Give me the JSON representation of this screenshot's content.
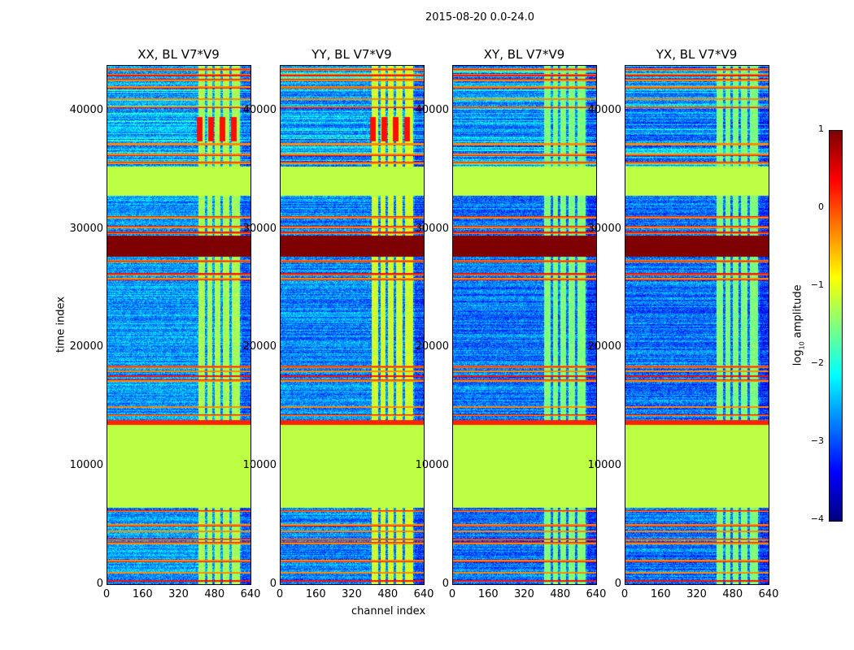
{
  "chart_data": {
    "type": "heatmap",
    "title": "2015-08-20 0.0-24.0",
    "xlabel": "channel index",
    "ylabel": "time index",
    "xlim": [
      0,
      640
    ],
    "ylim": [
      0,
      43840
    ],
    "xticks": [
      "0",
      "160",
      "320",
      "480",
      "640"
    ],
    "xtick_values": [
      0,
      160,
      320,
      480,
      640
    ],
    "yticks": [
      "0",
      "10000",
      "20000",
      "30000",
      "40000"
    ],
    "ytick_values": [
      0,
      10000,
      20000,
      30000,
      40000
    ],
    "panels": [
      {
        "title": "XX, BL V7*V9",
        "noise_level": -2.6,
        "rfi_level": -1.3
      },
      {
        "title": "YY, BL V7*V9",
        "noise_level": -2.7,
        "rfi_level": -1.1
      },
      {
        "title": "XY, BL V7*V9",
        "noise_level": -2.8,
        "rfi_level": -1.5
      },
      {
        "title": "YX, BL V7*V9",
        "noise_level": -2.8,
        "rfi_level": -1.5
      }
    ],
    "flagged_bands": [
      {
        "t0": 6500,
        "t1": 13450,
        "value": -1.2
      },
      {
        "t0": 13450,
        "t1": 13900,
        "value": 0.2
      },
      {
        "t0": 27650,
        "t1": 29450,
        "value": 1.0
      },
      {
        "t0": 32850,
        "t1": 35300,
        "value": -1.2
      }
    ],
    "flagged_lines": [
      300,
      1000,
      2000,
      3500,
      3800,
      4500,
      5000,
      6200,
      14300,
      15000,
      17200,
      17600,
      18000,
      18400,
      25800,
      26200,
      27300,
      29700,
      30200,
      31000,
      35600,
      36300,
      37200,
      40300,
      41000,
      42000,
      42600,
      43000,
      43500
    ],
    "rfi_channels": [
      [
        405,
        435
      ],
      [
        445,
        470
      ],
      [
        480,
        505
      ],
      [
        515,
        545
      ],
      [
        555,
        590
      ]
    ],
    "hot_region": {
      "t0": 37400,
      "t1": 39500,
      "c0": 400,
      "c1": 600,
      "value": 0.3
    },
    "colorbar": {
      "label": "log10 amplitude",
      "label_main": "log",
      "label_sub": "10",
      "label_rest": " amplitude",
      "range": [
        -4,
        1
      ],
      "ticks": [
        "1",
        "0",
        "−1",
        "−2",
        "−3",
        "−4"
      ],
      "tick_values": [
        1,
        0,
        -1,
        -2,
        -3,
        -4
      ],
      "colormap": "jet"
    }
  }
}
